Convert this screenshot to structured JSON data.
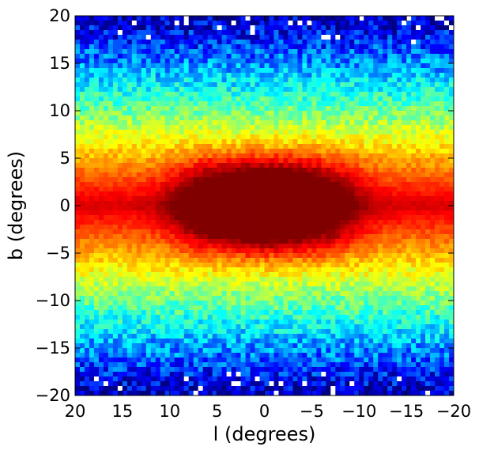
{
  "chart_data": {
    "type": "heatmap",
    "title": "",
    "xlabel": "l (degrees)",
    "ylabel": "b (degrees)",
    "xlim": [
      20,
      -20
    ],
    "ylim": [
      -20,
      20
    ],
    "x_inverted": true,
    "xticks": [
      20,
      15,
      10,
      5,
      0,
      -5,
      -10,
      -15,
      -20
    ],
    "xtick_labels": [
      "20",
      "15",
      "10",
      "5",
      "0",
      "−5",
      "−10",
      "−15",
      "−20"
    ],
    "yticks": [
      20,
      15,
      10,
      5,
      0,
      -5,
      -10,
      -15,
      -20
    ],
    "ytick_labels": [
      "20",
      "15",
      "10",
      "5",
      "0",
      "−5",
      "−10",
      "−15",
      "−20"
    ],
    "grid": false,
    "colormap": "jet",
    "bin_size_deg": 0.5,
    "description_features": {
      "peak_center": [
        0,
        0
      ],
      "midplane_stripe_b": 0.2,
      "bulge_half_width_l": 9,
      "bulge_half_height_b": 5.5,
      "sparse_region_abs_b_min": 17
    }
  }
}
